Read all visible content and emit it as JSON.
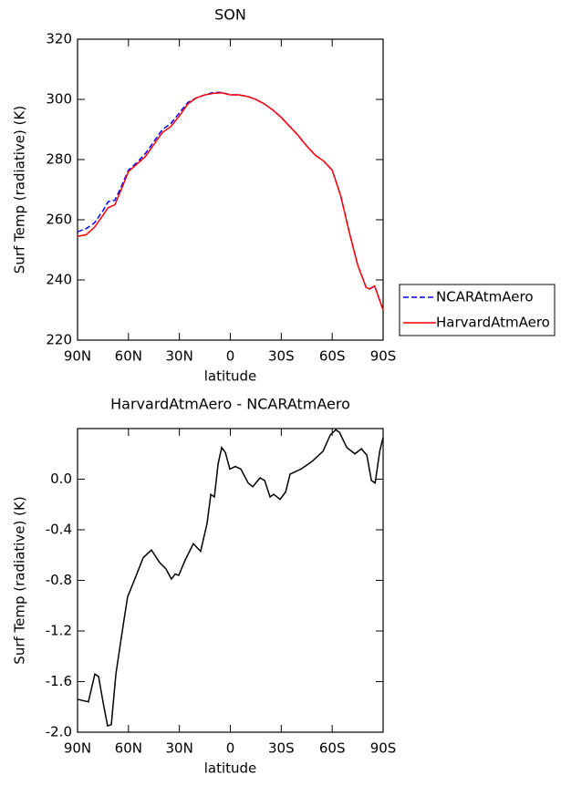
{
  "chart_data": [
    {
      "type": "line",
      "title": "SON",
      "x_label": "latitude",
      "y_label": "Surf Temp (radiative) (K)",
      "x": [
        90,
        85,
        80,
        75,
        72,
        68,
        65,
        60,
        55,
        50,
        45,
        40,
        35,
        30,
        25,
        20,
        15,
        10,
        5,
        0,
        -5,
        -10,
        -15,
        -20,
        -25,
        -30,
        -35,
        -40,
        -45,
        -50,
        -55,
        -60,
        -65,
        -70,
        -75,
        -80,
        -82,
        -85,
        -90
      ],
      "series": [
        {
          "name": "NCARAtmAero",
          "color": "#0000ff",
          "dash": true,
          "values": [
            256,
            257,
            259,
            263,
            266,
            266.5,
            270,
            276.5,
            279,
            282,
            286,
            290,
            292,
            295.5,
            299,
            300.5,
            301.5,
            302.3,
            302.3,
            301.5,
            301.5,
            301,
            300,
            298.5,
            296.5,
            294,
            291,
            288,
            284.5,
            281.5,
            279.5,
            276.5,
            268,
            256,
            245,
            237.5,
            237,
            238,
            230
          ]
        },
        {
          "name": "HarvardAtmAero",
          "color": "#ff0000",
          "dash": false,
          "values": [
            254.5,
            255,
            257.5,
            261.5,
            264,
            265,
            269,
            276,
            278.5,
            281,
            285,
            289,
            291,
            294.5,
            298.5,
            300.5,
            301.5,
            302,
            302.2,
            301.5,
            301.5,
            301,
            300,
            298.5,
            296.5,
            294,
            291,
            288,
            284.5,
            281.5,
            279.5,
            276.5,
            268,
            256,
            245,
            237.5,
            237,
            238,
            230
          ]
        }
      ],
      "xlim": [
        90,
        -90
      ],
      "xticks": [
        {
          "value": 90,
          "label": "90N"
        },
        {
          "value": 60,
          "label": "60N"
        },
        {
          "value": 30,
          "label": "30N"
        },
        0,
        {
          "value": -30,
          "label": "30S"
        },
        {
          "value": -60,
          "label": "60S"
        },
        {
          "value": -90,
          "label": "90S"
        }
      ],
      "ylim": [
        220,
        320
      ],
      "yticks": [
        220,
        240,
        260,
        280,
        300,
        320
      ],
      "legend": "right"
    },
    {
      "type": "line",
      "title": "HarvardAtmAero - NCARAtmAero",
      "x_label": "latitude",
      "y_label": "Surf Temp (radiative) (K)",
      "x": [
        90,
        83.6,
        79.8,
        77.6,
        75,
        72.3,
        70.1,
        67.4,
        65.3,
        62.6,
        60.5,
        55.1,
        51.3,
        46.5,
        41.6,
        37.9,
        34.7,
        32.5,
        30.4,
        26.6,
        21.8,
        17.5,
        13.7,
        11.5,
        9.4,
        7.2,
        5.1,
        2.9,
        0.3,
        -3,
        -6.2,
        -10.5,
        -13.2,
        -17.5,
        -20.2,
        -23.4,
        -25.6,
        -29.3,
        -32.6,
        -35.2,
        -41.7,
        -48.1,
        -54.6,
        -58.9,
        -62.1,
        -64.3,
        -68.6,
        -73.4,
        -77.2,
        -80.4,
        -83.1,
        -85.3,
        -88,
        -90
      ],
      "values": [
        -1.74,
        -1.76,
        -1.54,
        -1.56,
        -1.76,
        -1.95,
        -1.94,
        -1.54,
        -1.35,
        -1.11,
        -0.93,
        -0.75,
        -0.62,
        -0.56,
        -0.66,
        -0.71,
        -0.79,
        -0.75,
        -0.76,
        -0.64,
        -0.51,
        -0.57,
        -0.35,
        -0.12,
        -0.14,
        0.12,
        0.25,
        0.21,
        0.08,
        0.1,
        0.08,
        -0.03,
        -0.06,
        0.01,
        -0.01,
        -0.14,
        -0.12,
        -0.16,
        -0.1,
        0.04,
        0.08,
        0.14,
        0.22,
        0.35,
        0.39,
        0.37,
        0.25,
        0.2,
        0.24,
        0.19,
        -0.01,
        -0.03,
        0.22,
        0.33
      ],
      "color": "#000000",
      "xlim": [
        90,
        -90
      ],
      "xticks": [
        {
          "value": 90,
          "label": "90N"
        },
        {
          "value": 60,
          "label": "60N"
        },
        {
          "value": 30,
          "label": "30N"
        },
        0,
        {
          "value": -30,
          "label": "30S"
        },
        {
          "value": -60,
          "label": "60S"
        },
        {
          "value": -90,
          "label": "90S"
        }
      ],
      "ylim": [
        -2.0,
        0.4
      ],
      "yticks": [
        {
          "value": -2,
          "label": "-2.0"
        },
        -1.6,
        -1.2,
        -0.8,
        -0.4,
        {
          "value": 0,
          "label": "0.0"
        }
      ]
    }
  ]
}
